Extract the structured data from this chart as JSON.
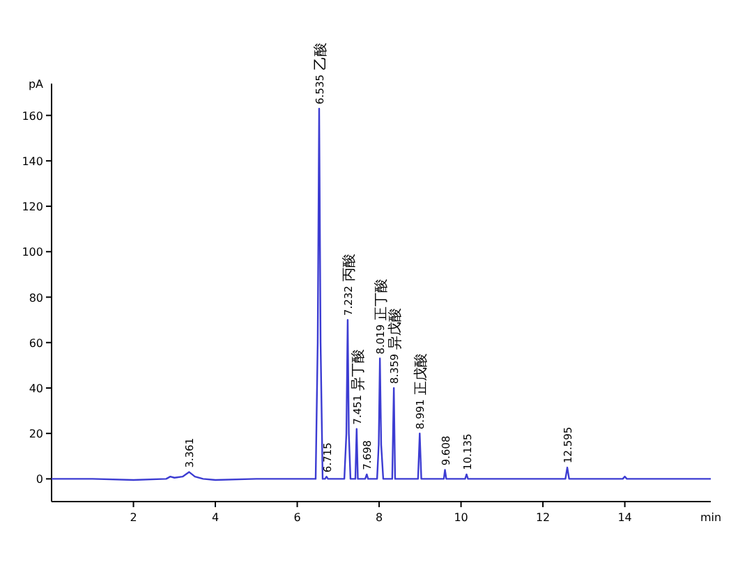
{
  "chart_data": {
    "type": "line",
    "xlabel": "min",
    "ylabel": "pA",
    "color": "#3c3cd2",
    "grid": false,
    "marker": "none",
    "line_style": "solid",
    "xlim": [
      0,
      16.1
    ],
    "ylim": [
      -10,
      174
    ],
    "xticks": [
      2,
      4,
      6,
      8,
      10,
      12,
      14
    ],
    "yticks": [
      0,
      20,
      40,
      60,
      80,
      100,
      120,
      140,
      160
    ],
    "x": [
      0,
      1,
      2,
      2.8,
      2.9,
      3.0,
      3.2,
      3.361,
      3.5,
      3.7,
      4,
      5,
      6,
      6.45,
      6.5,
      6.535,
      6.57,
      6.62,
      6.68,
      6.715,
      6.75,
      7.15,
      7.2,
      7.232,
      7.26,
      7.3,
      7.42,
      7.451,
      7.48,
      7.55,
      7.66,
      7.698,
      7.73,
      7.95,
      7.99,
      8.019,
      8.05,
      8.1,
      8.32,
      8.359,
      8.39,
      8.45,
      8.95,
      8.991,
      9.03,
      9.1,
      9.58,
      9.608,
      9.64,
      9.7,
      10.1,
      10.135,
      10.17,
      10.5,
      12.55,
      12.595,
      12.64,
      12.7,
      13.95,
      14.0,
      14.05,
      15,
      16.1
    ],
    "values": [
      0,
      0,
      -0.5,
      0,
      1,
      0.5,
      1,
      3,
      1,
      0,
      -0.5,
      0,
      0,
      0,
      60,
      163,
      60,
      0,
      0,
      1,
      0,
      0,
      20,
      70,
      20,
      0,
      0,
      22,
      0,
      0,
      0,
      2,
      0,
      0,
      15,
      53,
      15,
      0,
      0,
      40,
      0,
      0,
      0,
      20,
      0,
      0,
      0,
      4,
      0,
      0,
      0,
      2,
      0,
      0,
      0,
      5,
      0,
      0,
      0,
      1,
      0,
      0,
      0
    ],
    "annotations": [
      {
        "text": "3.361",
        "x": 3.361,
        "y": 3
      },
      {
        "text": "6.535",
        "x": 6.535,
        "y": 163
      },
      {
        "text": "乙酸",
        "x": 6.535,
        "y": 163
      },
      {
        "text": "6.715",
        "x": 6.715,
        "y": 1
      },
      {
        "text": "7.232",
        "x": 7.232,
        "y": 70
      },
      {
        "text": "丙酸",
        "x": 7.232,
        "y": 70
      },
      {
        "text": "7.451",
        "x": 7.451,
        "y": 22
      },
      {
        "text": "异丁酸",
        "x": 7.451,
        "y": 22
      },
      {
        "text": "7.698",
        "x": 7.698,
        "y": 2
      },
      {
        "text": "8.019",
        "x": 8.019,
        "y": 53
      },
      {
        "text": "正丁酸",
        "x": 8.019,
        "y": 53
      },
      {
        "text": "8.359",
        "x": 8.359,
        "y": 40
      },
      {
        "text": "异戊酸",
        "x": 8.359,
        "y": 40
      },
      {
        "text": "8.991",
        "x": 8.991,
        "y": 20
      },
      {
        "text": "正戊酸",
        "x": 8.991,
        "y": 20
      },
      {
        "text": "9.608",
        "x": 9.608,
        "y": 4
      },
      {
        "text": "10.135",
        "x": 10.135,
        "y": 2
      },
      {
        "text": "12.595",
        "x": 12.595,
        "y": 5
      }
    ]
  }
}
